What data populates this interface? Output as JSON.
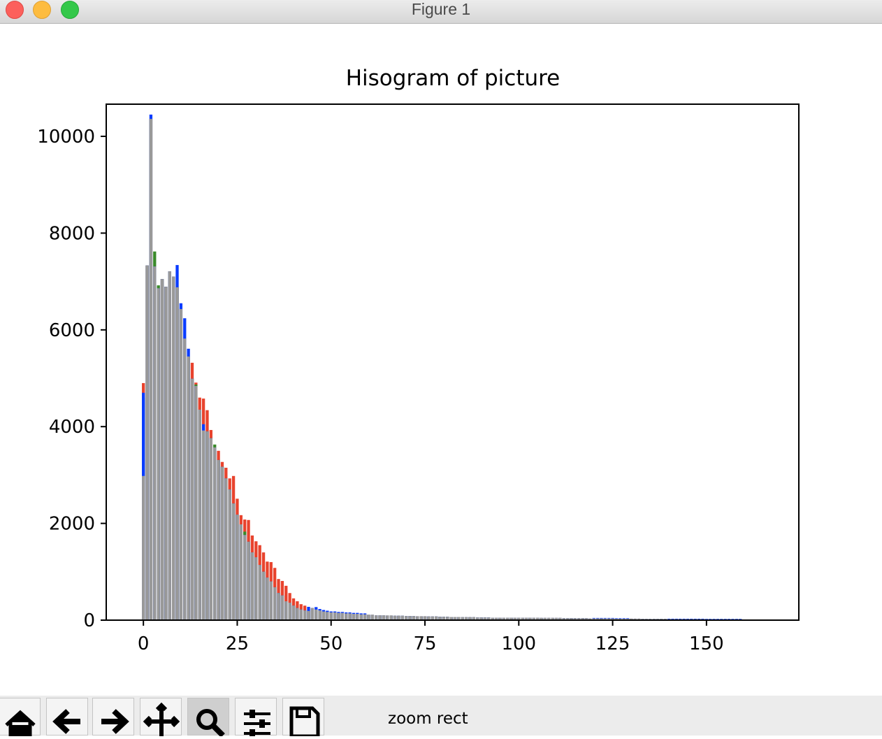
{
  "window": {
    "title": "Figure 1"
  },
  "chart_data": {
    "type": "bar",
    "title": "Hisogram of picture",
    "x": [
      0,
      1,
      2,
      3,
      4,
      5,
      6,
      7,
      8,
      9,
      10,
      11,
      12,
      13,
      14,
      15,
      16,
      17,
      18,
      19,
      20,
      21,
      22,
      23,
      24,
      25,
      26,
      27,
      28,
      29,
      30,
      31,
      32,
      33,
      34,
      35,
      36,
      37,
      38,
      39,
      40,
      41,
      42,
      43,
      44,
      45,
      46,
      47,
      48,
      49,
      50,
      51,
      52,
      53,
      54,
      55,
      56,
      57,
      58,
      59,
      60,
      61,
      62,
      63,
      64,
      65,
      66,
      67,
      68,
      69,
      70,
      71,
      72,
      73,
      74,
      75,
      76,
      77,
      78,
      79,
      80,
      81,
      82,
      83,
      84,
      85,
      86,
      87,
      88,
      89,
      90,
      91,
      92,
      93,
      94,
      95,
      96,
      97,
      98,
      99,
      100,
      101,
      102,
      103,
      104,
      105,
      106,
      107,
      108,
      109,
      110,
      111,
      112,
      113,
      114,
      115,
      116,
      117,
      118,
      119,
      120,
      121,
      122,
      123,
      124,
      125,
      126,
      127,
      128,
      129,
      130,
      131,
      132,
      133,
      134,
      135,
      136,
      137,
      138,
      139,
      140,
      141,
      142,
      143,
      144,
      145,
      146,
      147,
      148,
      149,
      150,
      151,
      152,
      153,
      154,
      155,
      156,
      157,
      158,
      159,
      160,
      161,
      162,
      163,
      164,
      165,
      166,
      167,
      168,
      169,
      170
    ],
    "series": [
      {
        "color": "#e8432d",
        "values": [
          4900,
          7330,
          10360,
          7310,
          6860,
          7050,
          6890,
          7210,
          7100,
          6880,
          6430,
          5820,
          5450,
          5320,
          4910,
          4600,
          4580,
          4340,
          3930,
          3570,
          3500,
          3270,
          3150,
          2930,
          2980,
          2510,
          2170,
          2080,
          2070,
          1750,
          1630,
          1550,
          1400,
          1210,
          1200,
          1080,
          850,
          810,
          710,
          560,
          450,
          390,
          330,
          300,
          190,
          250,
          220,
          200,
          180,
          170,
          160,
          160,
          150,
          150,
          140,
          140,
          130,
          130,
          120,
          120,
          110,
          110,
          100,
          100,
          100,
          95,
          95,
          90,
          90,
          90,
          85,
          85,
          85,
          80,
          80,
          80,
          75,
          75,
          75,
          70,
          70,
          70,
          65,
          65,
          65,
          60,
          60,
          60,
          60,
          55,
          55,
          55,
          55,
          50,
          50,
          50,
          50,
          50,
          50,
          50,
          50,
          50,
          50,
          50,
          50,
          50,
          45,
          45,
          45,
          45,
          45,
          45,
          40,
          40,
          40,
          40,
          40,
          40,
          40,
          35,
          35,
          35,
          35,
          35,
          35,
          35,
          30,
          30,
          30,
          30,
          30,
          30,
          30,
          25,
          25,
          25,
          25,
          25,
          25,
          25,
          20,
          20,
          20,
          20,
          20,
          20,
          20,
          20,
          20,
          20,
          15,
          15,
          15,
          15,
          15,
          15,
          15,
          15,
          15,
          15,
          10,
          10,
          10,
          10,
          10,
          10,
          10,
          10,
          10,
          10,
          10
        ]
      },
      {
        "color": "#3a8a2a",
        "values": [
          4600,
          7330,
          10360,
          7620,
          6920,
          7050,
          6890,
          7210,
          7100,
          6880,
          6430,
          5820,
          5450,
          4990,
          4870,
          4350,
          3920,
          3900,
          3760,
          3630,
          3310,
          3170,
          2930,
          2700,
          2410,
          2180,
          1980,
          1830,
          1620,
          1400,
          1300,
          1140,
          1000,
          880,
          800,
          680,
          560,
          510,
          390,
          360,
          300,
          250,
          220,
          200,
          190,
          250,
          220,
          200,
          180,
          170,
          160,
          160,
          150,
          150,
          140,
          140,
          130,
          130,
          120,
          120,
          110,
          110,
          100,
          100,
          100,
          95,
          95,
          90,
          90,
          90,
          85,
          85,
          85,
          80,
          80,
          80,
          75,
          75,
          75,
          70,
          70,
          70,
          65,
          65,
          65,
          60,
          60,
          60,
          60,
          55,
          55,
          55,
          55,
          50,
          50,
          50,
          50,
          50,
          50,
          50,
          50,
          50,
          50,
          50,
          50,
          50,
          45,
          45,
          45,
          45,
          45,
          45,
          40,
          40,
          40,
          40,
          40,
          40,
          40,
          35,
          35,
          35,
          35,
          35,
          35,
          35,
          30,
          30,
          30,
          30,
          30,
          30,
          30,
          25,
          25,
          25,
          25,
          25,
          25,
          25,
          20,
          20,
          20,
          20,
          20,
          20,
          20,
          20,
          20,
          20,
          15,
          15,
          15,
          15,
          15,
          15,
          15,
          15,
          15,
          15,
          10,
          10,
          10,
          10,
          10,
          10,
          10,
          10,
          10,
          10,
          10
        ]
      },
      {
        "color": "#0a3cff",
        "values": [
          4700,
          7330,
          10450,
          7310,
          6860,
          7050,
          6890,
          7210,
          7100,
          7340,
          6550,
          6240,
          5610,
          4990,
          4840,
          4350,
          4050,
          3900,
          3760,
          3570,
          3310,
          3170,
          2930,
          2700,
          2410,
          2180,
          1980,
          1760,
          1620,
          1400,
          1300,
          1140,
          1000,
          880,
          800,
          680,
          560,
          510,
          390,
          360,
          300,
          250,
          220,
          200,
          275,
          250,
          270,
          230,
          210,
          195,
          180,
          180,
          170,
          170,
          160,
          160,
          150,
          150,
          140,
          140,
          110,
          110,
          100,
          100,
          100,
          95,
          95,
          90,
          90,
          90,
          85,
          85,
          85,
          80,
          80,
          80,
          75,
          75,
          75,
          70,
          70,
          70,
          65,
          65,
          65,
          60,
          60,
          60,
          60,
          55,
          55,
          55,
          55,
          50,
          50,
          50,
          50,
          50,
          50,
          50,
          50,
          50,
          50,
          50,
          50,
          50,
          45,
          45,
          45,
          45,
          45,
          45,
          40,
          40,
          40,
          40,
          40,
          40,
          40,
          35,
          45,
          45,
          45,
          45,
          45,
          45,
          40,
          40,
          40,
          40,
          30,
          30,
          30,
          25,
          25,
          25,
          25,
          25,
          25,
          25,
          30,
          30,
          30,
          30,
          30,
          30,
          30,
          30,
          30,
          30,
          25,
          25,
          25,
          25,
          25,
          25,
          25,
          25,
          25,
          25,
          10,
          10,
          10,
          10,
          10,
          10,
          10,
          10,
          10,
          10,
          10
        ]
      },
      {
        "color": "#999999",
        "values": [
          2980,
          7330,
          10360,
          7310,
          6860,
          7050,
          6890,
          7210,
          7100,
          6880,
          6430,
          5820,
          5450,
          4990,
          4840,
          4350,
          3920,
          3900,
          3760,
          3570,
          3310,
          3170,
          2930,
          2700,
          2410,
          2180,
          1980,
          1760,
          1620,
          1400,
          1300,
          1140,
          1000,
          880,
          800,
          680,
          560,
          510,
          390,
          360,
          300,
          250,
          220,
          200,
          190,
          250,
          220,
          200,
          180,
          170,
          160,
          160,
          150,
          150,
          140,
          140,
          130,
          130,
          120,
          120,
          110,
          110,
          100,
          100,
          100,
          95,
          95,
          90,
          90,
          90,
          85,
          85,
          85,
          80,
          80,
          80,
          75,
          75,
          75,
          70,
          70,
          70,
          65,
          65,
          65,
          60,
          60,
          60,
          60,
          55,
          55,
          55,
          55,
          50,
          50,
          50,
          50,
          50,
          50,
          50,
          50,
          50,
          50,
          50,
          50,
          50,
          45,
          45,
          45,
          45,
          45,
          45,
          40,
          40,
          40,
          40,
          40,
          40,
          40,
          35,
          35,
          35,
          35,
          35,
          35,
          35,
          30,
          30,
          30,
          30,
          30,
          30,
          30,
          25,
          25,
          25,
          25,
          25,
          25,
          25,
          20,
          20,
          20,
          20,
          20,
          20,
          20,
          20,
          20,
          20,
          15,
          15,
          15,
          15,
          15,
          15,
          15,
          15,
          15,
          15,
          10,
          10,
          10,
          10,
          10,
          10,
          10,
          10,
          10,
          10,
          10
        ]
      }
    ],
    "xlim": [
      -9.9,
      174.6
    ],
    "xticks": [
      0,
      25,
      50,
      75,
      100,
      125,
      150
    ],
    "ylim": [
      0,
      10665
    ],
    "yticks": [
      0,
      2000,
      4000,
      6000,
      8000,
      10000
    ],
    "grid": false
  },
  "toolbar": {
    "status": "zoom rect"
  }
}
